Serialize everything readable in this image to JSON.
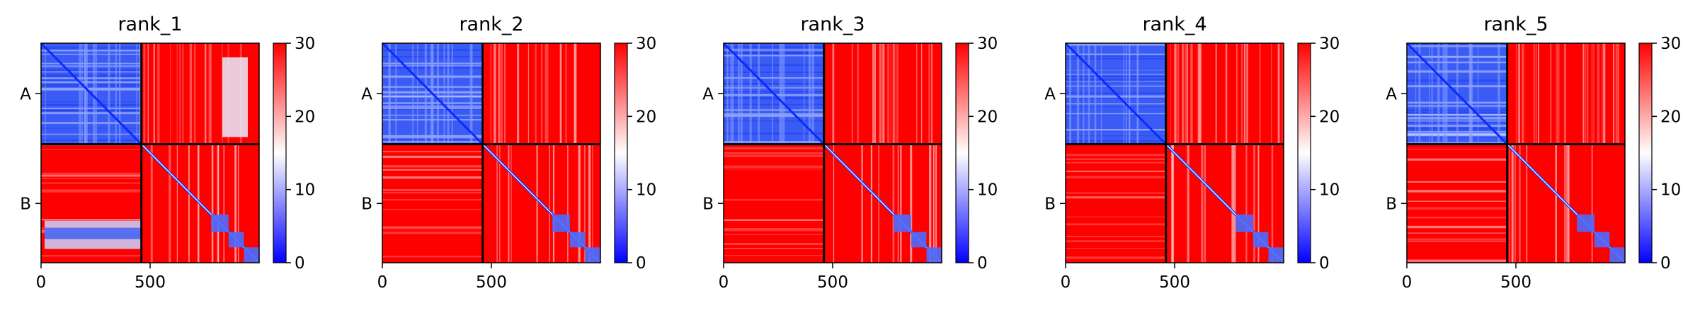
{
  "chart_data": {
    "type": "heatmap",
    "colormap": "bwr",
    "colors": {
      "low": "#0000ff",
      "mid": "#ffffff",
      "high": "#ff0000",
      "divider": "#000000"
    },
    "vmin": 0,
    "vmax": 30,
    "colorbar_ticks": [
      "0",
      "10",
      "20",
      "30"
    ],
    "xticks": [
      {
        "value": 0,
        "label": "0"
      },
      {
        "value": 500,
        "label": "500"
      }
    ],
    "x_range": [
      0,
      1000
    ],
    "chain_break": 460,
    "chain_labels": [
      "A",
      "B"
    ],
    "panels": [
      {
        "title": "rank_1"
      },
      {
        "title": "rank_2"
      },
      {
        "title": "rank_3"
      },
      {
        "title": "rank_4"
      },
      {
        "title": "rank_5"
      }
    ]
  }
}
